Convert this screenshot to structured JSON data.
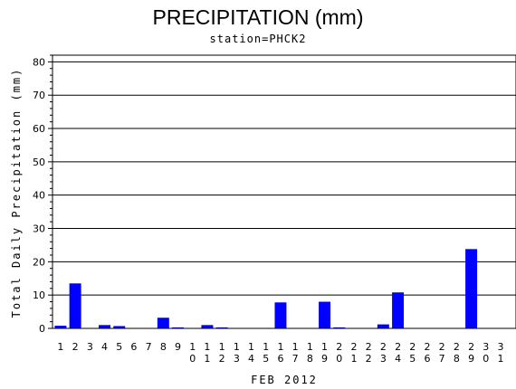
{
  "chart_data": {
    "type": "bar",
    "title": "PRECIPITATION (mm)",
    "subtitle": "station=PHCK2",
    "xlabel": "FEB 2012",
    "ylabel": "Total Daily Precipitation (mm)",
    "ylim": [
      0,
      82
    ],
    "yticks": [
      0,
      10,
      20,
      30,
      40,
      50,
      60,
      70,
      80
    ],
    "grid": true,
    "bar_color": "#0000ff",
    "categories": [
      "1",
      "2",
      "3",
      "4",
      "5",
      "6",
      "7",
      "8",
      "9",
      "10",
      "11",
      "12",
      "13",
      "14",
      "15",
      "16",
      "17",
      "18",
      "19",
      "20",
      "21",
      "22",
      "23",
      "24",
      "25",
      "26",
      "27",
      "28",
      "29",
      "30",
      "31"
    ],
    "values": [
      0.8,
      13.5,
      0,
      1.0,
      0.7,
      0,
      0,
      3.2,
      0.3,
      0,
      1.0,
      0.3,
      0,
      0,
      0,
      7.8,
      0,
      0,
      8.0,
      0.3,
      0,
      0,
      1.2,
      10.8,
      0,
      0,
      0,
      0,
      23.8,
      0,
      0
    ]
  }
}
